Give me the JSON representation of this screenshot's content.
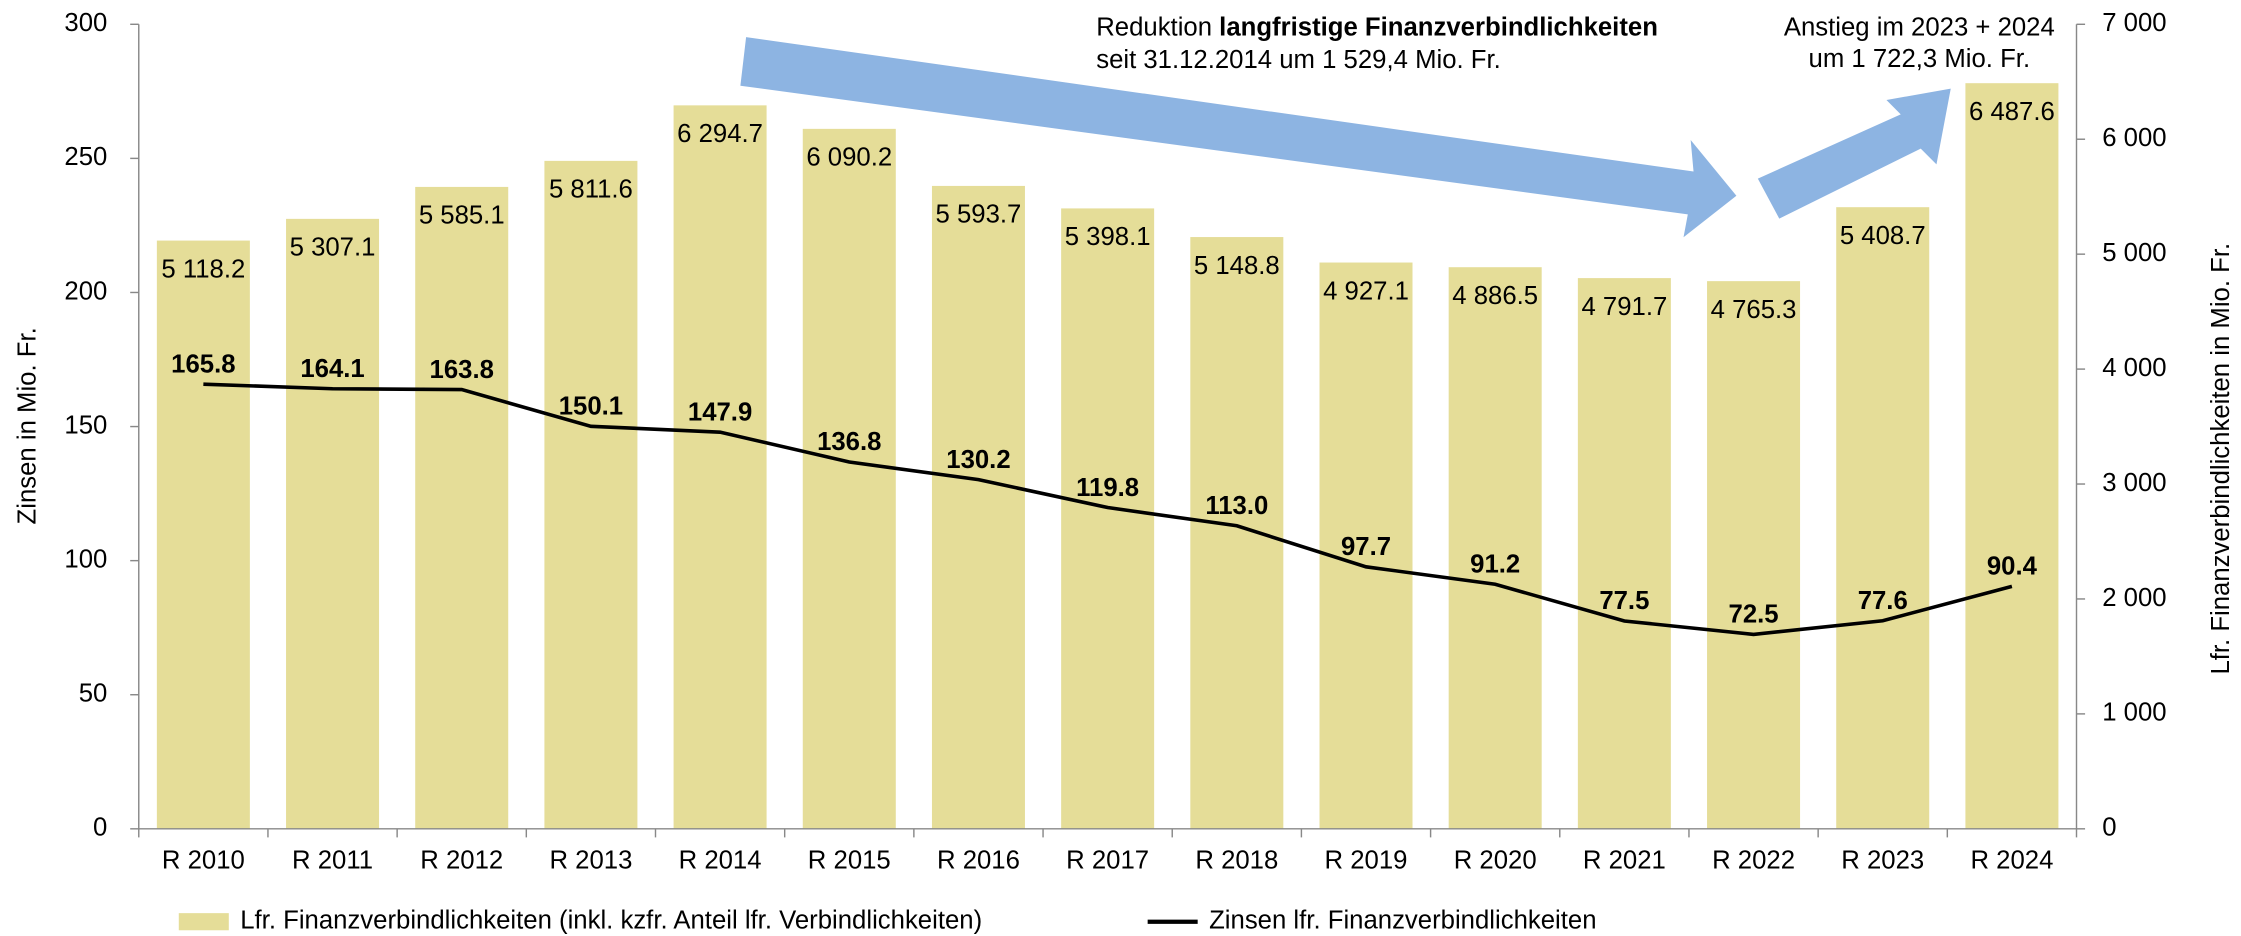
{
  "chart_data": {
    "type": "bar_line",
    "categories": [
      "R 2010",
      "R 2011",
      "R 2012",
      "R 2013",
      "R 2014",
      "R 2015",
      "R 2016",
      "R 2017",
      "R 2018",
      "R 2019",
      "R 2020",
      "R 2021",
      "R 2022",
      "R 2023",
      "R 2024"
    ],
    "series": [
      {
        "name": "Lfr. Finanzverbindlichkeiten (inkl. kzfr. Anteil lfr. Verbindlichkeiten)",
        "type": "bar",
        "axis": "y2",
        "color": "#e5dd98",
        "values": [
          5118.2,
          5307.1,
          5585.1,
          5811.6,
          6294.7,
          6090.2,
          5593.7,
          5398.1,
          5148.8,
          4927.1,
          4886.5,
          4791.7,
          4765.3,
          5408.7,
          6487.6
        ],
        "value_labels": [
          "5 118.2",
          "5 307.1",
          "5 585.1",
          "5 811.6",
          "6 294.7",
          "6 090.2",
          "5 593.7",
          "5 398.1",
          "5 148.8",
          "4 927.1",
          "4 886.5",
          "4 791.7",
          "4 765.3",
          "5 408.7",
          "6 487.6"
        ]
      },
      {
        "name": "Zinsen lfr. Finanzverbindlichkeiten",
        "type": "line",
        "axis": "y",
        "color": "#000000",
        "values": [
          165.8,
          164.1,
          163.8,
          150.1,
          147.9,
          136.8,
          130.2,
          119.8,
          113.0,
          97.7,
          91.2,
          77.5,
          72.5,
          77.6,
          90.4
        ],
        "value_labels": [
          "165.8",
          "164.1",
          "163.8",
          "150.1",
          "147.9",
          "136.8",
          "130.2",
          "119.8",
          "113.0",
          "97.7",
          "91.2",
          "77.5",
          "72.5",
          "77.6",
          "90.4"
        ]
      }
    ],
    "ylabel": "Zinsen in Mio. Fr.",
    "y2label": "Lfr. Finanzverbindlichkeiten in Mio. Fr.",
    "ylim": [
      0,
      300
    ],
    "yticks": [
      0,
      50,
      100,
      150,
      200,
      250,
      300
    ],
    "y2lim": [
      0,
      7000
    ],
    "y2ticks": [
      0,
      {
        "value": 1000,
        "label": "1 000"
      },
      {
        "value": 2000,
        "label": "2 000"
      },
      {
        "value": 3000,
        "label": "3 000"
      },
      {
        "value": 4000,
        "label": "4 000"
      },
      {
        "value": 5000,
        "label": "5 000"
      },
      {
        "value": 6000,
        "label": "6 000"
      },
      {
        "value": 7000,
        "label": "7 000"
      }
    ],
    "legend": "bottom",
    "annotations": [
      {
        "prefix": "Reduktion",
        "bold": "langfristige Finanzverbindlichkeiten",
        "line2": "seit 31.12.2014 um 1 529,4 Mio. Fr."
      },
      {
        "line1": "Anstieg im 2023 + 2024",
        "line2": "um 1 722,3 Mio. Fr."
      }
    ]
  }
}
